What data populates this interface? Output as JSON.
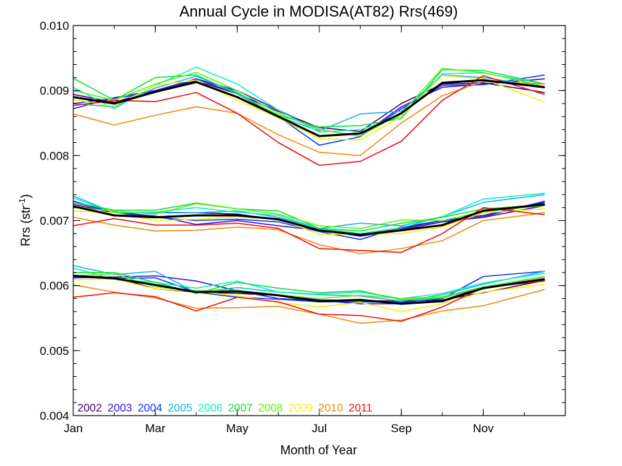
{
  "chart_data": {
    "type": "line",
    "title": "Annual Cycle in MODISA(AT82) Rrs(469)",
    "xlabel": "Month of Year",
    "ylabel": "Rrs (str",
    "ylabel_sup": "-1",
    "ylabel_close": ")",
    "xlim": [
      1,
      13
    ],
    "ylim": [
      0.004,
      0.01
    ],
    "xticks": [
      {
        "value": 1,
        "label": "Jan"
      },
      {
        "value": 3,
        "label": "Mar"
      },
      {
        "value": 5,
        "label": "May"
      },
      {
        "value": 7,
        "label": "Jul"
      },
      {
        "value": 9,
        "label": "Sep"
      },
      {
        "value": 11,
        "label": "Nov"
      }
    ],
    "yticks": [
      {
        "value": 0.004,
        "label": "0.004"
      },
      {
        "value": 0.005,
        "label": "0.005"
      },
      {
        "value": 0.006,
        "label": "0.006"
      },
      {
        "value": 0.007,
        "label": "0.007"
      },
      {
        "value": 0.008,
        "label": "0.008"
      },
      {
        "value": 0.009,
        "label": "0.009"
      },
      {
        "value": 0.01,
        "label": "0.010"
      }
    ],
    "x": [
      1.0,
      2.0,
      3.0,
      4.0,
      5.0,
      6.0,
      7.0,
      8.0,
      9.0,
      10.0,
      11.0,
      12.5
    ],
    "legend_placement": "bottom-left",
    "series": [
      {
        "name": "2002",
        "color": "#4b006e",
        "groups": [
          [
            0.00894,
            0.00882,
            0.009,
            0.00915,
            0.00895,
            0.00868,
            0.00843,
            0.00837,
            0.0088,
            0.0091,
            0.00912,
            0.00897
          ],
          [
            0.00725,
            0.00712,
            0.00713,
            0.00712,
            0.0071,
            0.00701,
            0.00685,
            0.0068,
            0.00688,
            0.007,
            0.00708,
            0.00728
          ],
          [
            0.00615,
            0.00613,
            0.00595,
            0.0059,
            0.00588,
            0.00585,
            0.00578,
            0.00577,
            0.00576,
            0.00578,
            0.00589,
            0.00608
          ]
        ]
      },
      {
        "name": "2003",
        "color": "#3a10d8",
        "groups": [
          [
            0.00872,
            0.00889,
            0.009,
            0.00918,
            0.009,
            0.0087,
            0.0084,
            0.0083,
            0.00875,
            0.00905,
            0.0091,
            0.00918
          ],
          [
            0.00728,
            0.00713,
            0.00707,
            0.00694,
            0.007,
            0.00692,
            0.00685,
            0.00676,
            0.00686,
            0.00698,
            0.00705,
            0.00723
          ],
          [
            0.00612,
            0.00613,
            0.00615,
            0.00607,
            0.00592,
            0.0058,
            0.00577,
            0.00572,
            0.00572,
            0.00577,
            0.00598,
            0.0061
          ]
        ]
      },
      {
        "name": "2004",
        "color": "#0a3cf0",
        "groups": [
          [
            0.0088,
            0.00888,
            0.00897,
            0.00918,
            0.00895,
            0.0086,
            0.00816,
            0.00829,
            0.00872,
            0.00908,
            0.00909,
            0.00924
          ],
          [
            0.0073,
            0.00712,
            0.00705,
            0.007,
            0.00702,
            0.00698,
            0.00683,
            0.00671,
            0.0069,
            0.007,
            0.00706,
            0.0073
          ],
          [
            0.00613,
            0.00611,
            0.00612,
            0.0059,
            0.00582,
            0.00579,
            0.00575,
            0.00575,
            0.00574,
            0.0058,
            0.00614,
            0.00622
          ]
        ]
      },
      {
        "name": "2005",
        "color": "#10b8f0",
        "groups": [
          [
            0.0088,
            0.00875,
            0.00904,
            0.00922,
            0.00897,
            0.0086,
            0.00838,
            0.00864,
            0.00868,
            0.00924,
            0.0092,
            0.00906
          ],
          [
            0.00738,
            0.00712,
            0.00712,
            0.00712,
            0.00715,
            0.00705,
            0.00688,
            0.00696,
            0.00692,
            0.00706,
            0.00728,
            0.0074
          ],
          [
            0.00631,
            0.00617,
            0.00622,
            0.00589,
            0.00597,
            0.0059,
            0.00586,
            0.00584,
            0.00576,
            0.00586,
            0.00602,
            0.00622
          ]
        ]
      },
      {
        "name": "2006",
        "color": "#10f0c0",
        "groups": [
          [
            0.00905,
            0.00872,
            0.00908,
            0.00936,
            0.0091,
            0.0087,
            0.00836,
            0.0084,
            0.0086,
            0.00926,
            0.00927,
            0.0091
          ],
          [
            0.00735,
            0.00712,
            0.00713,
            0.0072,
            0.00713,
            0.00708,
            0.00688,
            0.0068,
            0.00689,
            0.00706,
            0.00733,
            0.00742
          ],
          [
            0.00627,
            0.0061,
            0.00605,
            0.00596,
            0.00607,
            0.0059,
            0.00587,
            0.0059,
            0.0058,
            0.00588,
            0.00604,
            0.00619
          ]
        ]
      },
      {
        "name": "2007",
        "color": "#10e040",
        "groups": [
          [
            0.00919,
            0.00885,
            0.0092,
            0.00924,
            0.00895,
            0.00862,
            0.00844,
            0.00846,
            0.00857,
            0.00932,
            0.00931,
            0.0091
          ],
          [
            0.00728,
            0.00716,
            0.00716,
            0.00727,
            0.00718,
            0.00715,
            0.00688,
            0.00684,
            0.00696,
            0.00705,
            0.00718,
            0.00724
          ],
          [
            0.0062,
            0.0062,
            0.00605,
            0.00588,
            0.00605,
            0.00596,
            0.00589,
            0.00592,
            0.00578,
            0.00581,
            0.00598,
            0.00614
          ]
        ]
      },
      {
        "name": "2008",
        "color": "#60f010",
        "groups": [
          [
            0.009,
            0.00885,
            0.0091,
            0.00928,
            0.009,
            0.00865,
            0.0084,
            0.0083,
            0.00865,
            0.00934,
            0.00928,
            0.00906
          ],
          [
            0.0072,
            0.00715,
            0.0071,
            0.00726,
            0.00718,
            0.0071,
            0.00692,
            0.00688,
            0.00701,
            0.007,
            0.00714,
            0.00723
          ],
          [
            0.00615,
            0.00618,
            0.00598,
            0.00592,
            0.00593,
            0.00586,
            0.0058,
            0.00585,
            0.0058,
            0.00583,
            0.00598,
            0.00613
          ]
        ]
      },
      {
        "name": "2009",
        "color": "#f0f010",
        "groups": [
          [
            0.00886,
            0.00876,
            0.00908,
            0.00916,
            0.00885,
            0.00858,
            0.00826,
            0.00824,
            0.0086,
            0.00923,
            0.00918,
            0.00882
          ],
          [
            0.00715,
            0.00712,
            0.007,
            0.00702,
            0.00706,
            0.00703,
            0.00679,
            0.00679,
            0.0068,
            0.0069,
            0.00712,
            0.00718
          ],
          [
            0.00609,
            0.0061,
            0.00595,
            0.00591,
            0.00584,
            0.00574,
            0.00567,
            0.00574,
            0.0056,
            0.00572,
            0.0059,
            0.00602
          ]
        ]
      },
      {
        "name": "2010",
        "color": "#f08c10",
        "groups": [
          [
            0.00864,
            0.00847,
            0.00862,
            0.00875,
            0.00865,
            0.00832,
            0.00805,
            0.008,
            0.0085,
            0.00892,
            0.00914,
            0.0091
          ],
          [
            0.00705,
            0.00693,
            0.00684,
            0.00685,
            0.0069,
            0.00686,
            0.00663,
            0.00649,
            0.00657,
            0.00669,
            0.007,
            0.00712
          ],
          [
            0.00601,
            0.0059,
            0.00581,
            0.00565,
            0.00566,
            0.00568,
            0.00556,
            0.00542,
            0.00547,
            0.00561,
            0.00569,
            0.00594
          ]
        ]
      },
      {
        "name": "2011",
        "color": "#f01010",
        "groups": [
          [
            0.00877,
            0.00885,
            0.00883,
            0.00897,
            0.00865,
            0.0082,
            0.00785,
            0.00791,
            0.00822,
            0.00885,
            0.00923,
            0.00894
          ],
          [
            0.00692,
            0.00703,
            0.00693,
            0.00693,
            0.00696,
            0.00688,
            0.00657,
            0.00654,
            0.00651,
            0.0068,
            0.0072,
            0.00709
          ],
          [
            0.00582,
            0.00589,
            0.00583,
            0.00561,
            0.00582,
            0.00575,
            0.00556,
            0.00554,
            0.00545,
            0.00567,
            0.00597,
            0.00607
          ]
        ]
      },
      {
        "color": "#000000",
        "mean": true,
        "groups": [
          [
            0.0089,
            0.0088,
            0.00898,
            0.00913,
            0.0089,
            0.0086,
            0.0083,
            0.00834,
            0.00865,
            0.00912,
            0.00916,
            0.00905
          ],
          [
            0.00722,
            0.00708,
            0.00705,
            0.00708,
            0.00708,
            0.00702,
            0.00685,
            0.00678,
            0.00685,
            0.00693,
            0.00715,
            0.00725
          ],
          [
            0.00615,
            0.00611,
            0.00601,
            0.0059,
            0.00591,
            0.00585,
            0.00576,
            0.00578,
            0.00572,
            0.00576,
            0.00596,
            0.0061
          ]
        ]
      }
    ]
  }
}
